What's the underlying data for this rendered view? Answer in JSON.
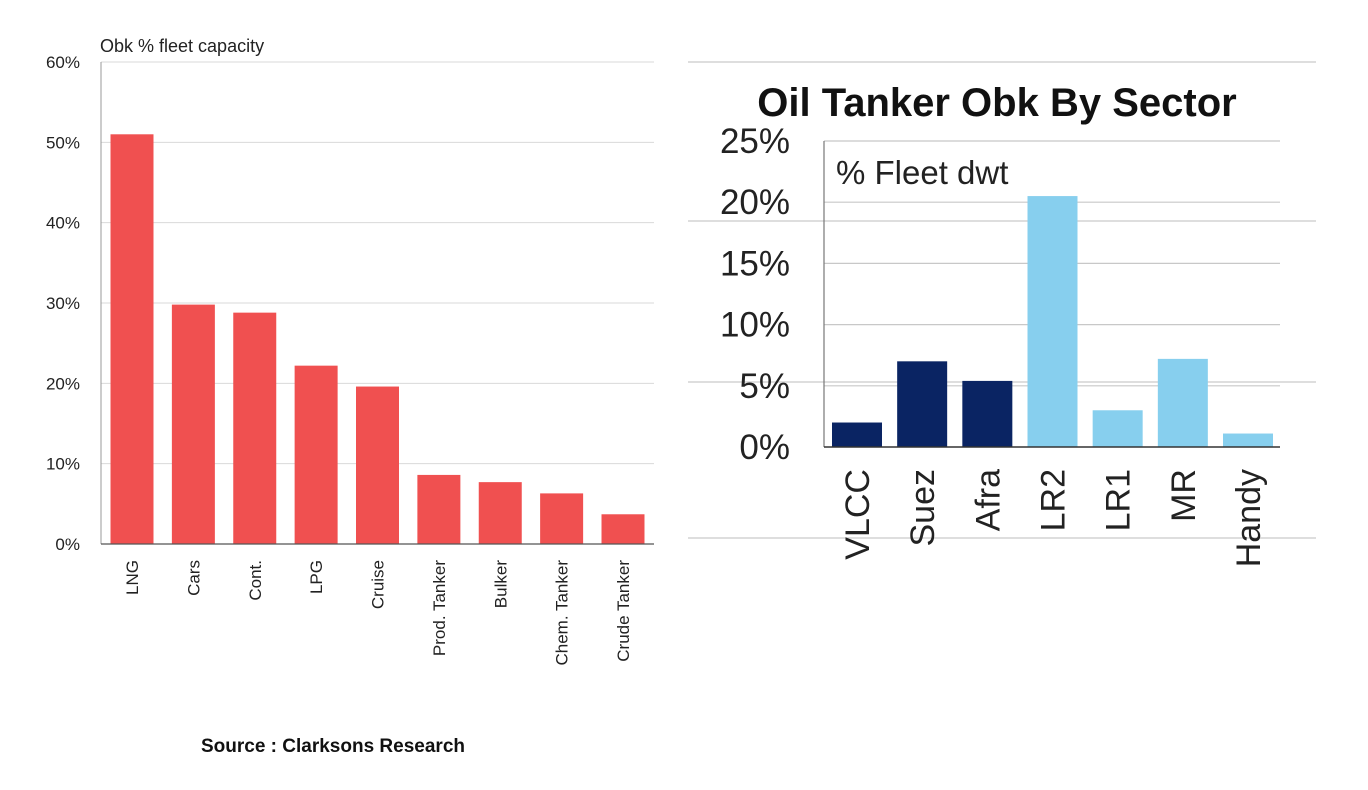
{
  "chart_data": [
    {
      "type": "bar",
      "title": "",
      "ylabel": "Obk % fleet capacity",
      "xlabel": "",
      "categories": [
        "LNG",
        "Cars",
        "Cont.",
        "LPG",
        "Cruise",
        "Prod. Tanker",
        "Bulker",
        "Chem. Tanker",
        "Crude Tanker"
      ],
      "series": [
        {
          "values": [
            51,
            29.8,
            28.8,
            22.2,
            19.6,
            8.6,
            7.7,
            6.3,
            3.7
          ],
          "color": "#f05050"
        }
      ],
      "ylim": [
        0,
        60
      ],
      "yticks": [
        0,
        10,
        20,
        30,
        40,
        50,
        60
      ],
      "ytick_labels": [
        "0%",
        "10%",
        "20%",
        "30%",
        "40%",
        "50%",
        "60%"
      ],
      "grid": true,
      "source": "Source : Clarksons Research"
    },
    {
      "type": "bar",
      "title": "Oil Tanker Obk By Sector",
      "ylabel": "% Fleet dwt",
      "xlabel": "",
      "categories": [
        "VLCC",
        "Suez",
        "Afra",
        "LR2",
        "LR1",
        "MR",
        "Handy"
      ],
      "series": [
        {
          "values": [
            2.0,
            7.0,
            5.4,
            20.5,
            3.0,
            7.2,
            1.1
          ]
        }
      ],
      "bar_colors": [
        "#0a2463",
        "#0a2463",
        "#0a2463",
        "#87cfee",
        "#87cfee",
        "#87cfee",
        "#87cfee"
      ],
      "ylim": [
        0,
        25
      ],
      "yticks": [
        0,
        5,
        10,
        15,
        20,
        25
      ],
      "ytick_labels": [
        "0%",
        "5%",
        "10%",
        "15%",
        "20%",
        "25%"
      ],
      "grid": true
    }
  ]
}
